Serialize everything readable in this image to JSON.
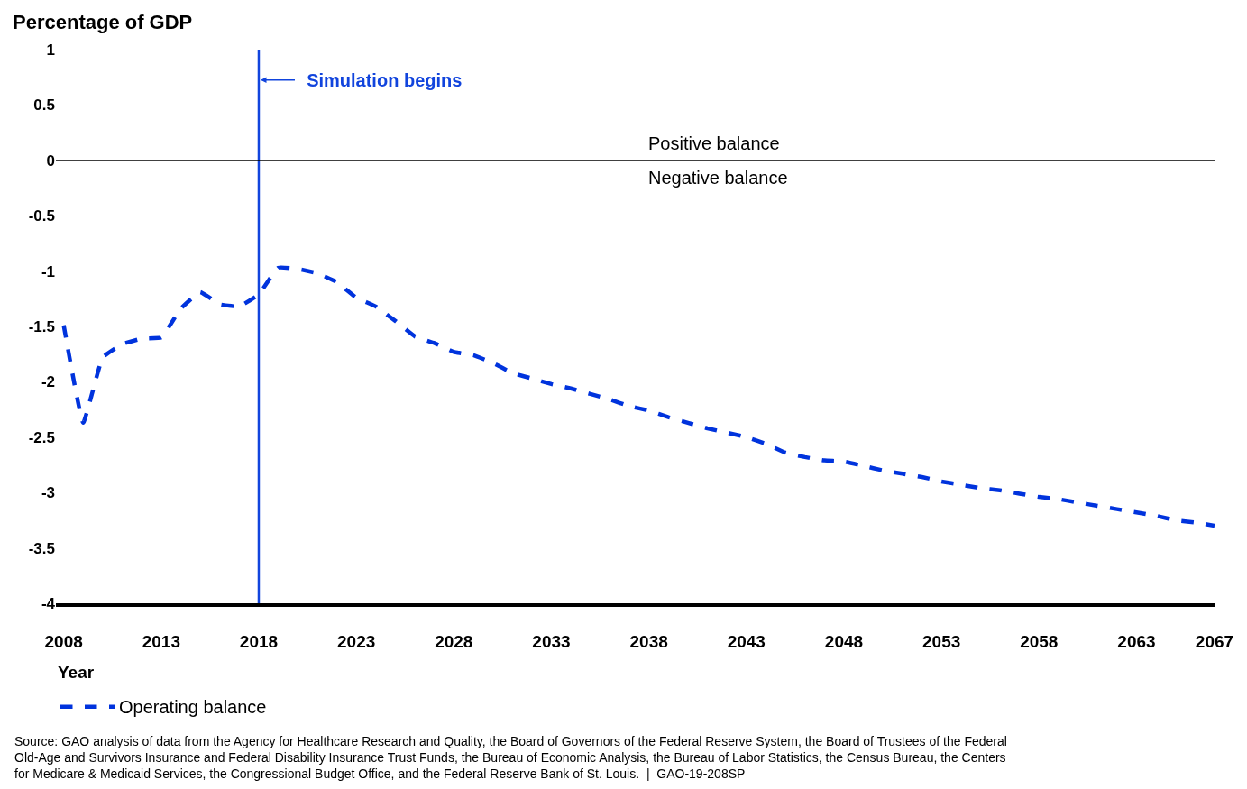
{
  "chart_data": {
    "type": "line",
    "ylabel": "Percentage of GDP",
    "xlabel": "Year",
    "x": [
      2008,
      2009,
      2010,
      2011,
      2012,
      2013,
      2014,
      2015,
      2016,
      2017,
      2018,
      2019,
      2020,
      2021,
      2022,
      2023,
      2024,
      2025,
      2026,
      2027,
      2028,
      2029,
      2030,
      2031,
      2032,
      2033,
      2034,
      2035,
      2036,
      2037,
      2038,
      2039,
      2040,
      2041,
      2042,
      2043,
      2044,
      2045,
      2046,
      2047,
      2048,
      2049,
      2050,
      2051,
      2052,
      2053,
      2054,
      2055,
      2056,
      2057,
      2058,
      2059,
      2060,
      2061,
      2062,
      2063,
      2064,
      2065,
      2066,
      2067
    ],
    "series": [
      {
        "name": "Operating balance",
        "color": "#0033dd",
        "values": [
          -1.49,
          -2.37,
          -1.78,
          -1.66,
          -1.61,
          -1.6,
          -1.34,
          -1.19,
          -1.3,
          -1.32,
          -1.21,
          -0.97,
          -0.98,
          -1.02,
          -1.1,
          -1.24,
          -1.32,
          -1.45,
          -1.59,
          -1.65,
          -1.73,
          -1.76,
          -1.83,
          -1.92,
          -1.97,
          -2.02,
          -2.06,
          -2.11,
          -2.16,
          -2.22,
          -2.26,
          -2.32,
          -2.37,
          -2.42,
          -2.46,
          -2.5,
          -2.56,
          -2.64,
          -2.68,
          -2.71,
          -2.72,
          -2.76,
          -2.8,
          -2.83,
          -2.86,
          -2.9,
          -2.93,
          -2.96,
          -2.98,
          -3.01,
          -3.04,
          -3.06,
          -3.09,
          -3.12,
          -3.15,
          -3.18,
          -3.21,
          -3.25,
          -3.27,
          -3.3
        ]
      }
    ],
    "xlim": [
      2007.6,
      2067
    ],
    "xticks": [
      2008,
      2013,
      2018,
      2023,
      2028,
      2033,
      2038,
      2043,
      2048,
      2053,
      2058,
      2063,
      2067
    ],
    "ylim": [
      -4,
      1
    ],
    "yticks": [
      1,
      0.5,
      0,
      -0.5,
      -1,
      -1.5,
      -2,
      -2.5,
      -3,
      -3.5,
      -4
    ],
    "ref_lines": [
      {
        "axis": "x",
        "value": 2018,
        "label": "Simulation begins",
        "color": "#1144dd",
        "line_style": "solid"
      },
      {
        "axis": "y",
        "value": 0,
        "color": "#000000",
        "line_style": "solid"
      }
    ],
    "annotations": [
      "Positive balance",
      "Negative balance",
      "Source: GAO analysis of data from the Agency for Healthcare Research and Quality, the Board of Governors of the Federal Reserve System, the Board of Trustees of the Federal Old-Age and Survivors Insurance and Federal Disability Insurance Trust Funds, the Bureau of Economic Analysis, the Bureau of Labor Statistics, the Census Bureau, the Centers for Medicare & Medicaid Services, the Congressional Budget Office, and the Federal Reserve Bank of St. Louis.  |  GAO-19-208SP"
    ],
    "legend": "bottom left",
    "marker": "none",
    "line_style": "dashed"
  }
}
